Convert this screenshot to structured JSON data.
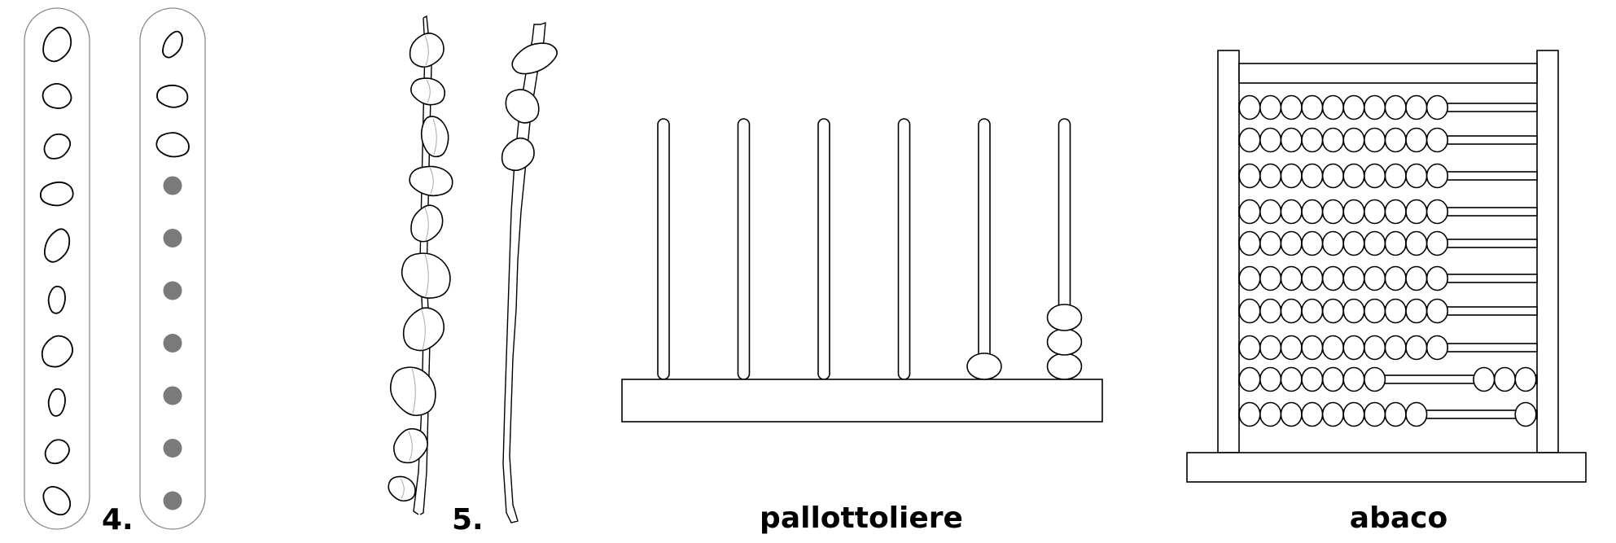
{
  "figure": {
    "label_tally_sticks": "4.",
    "label_bead_string": "5.",
    "label_bead_frame": "pallottoliere",
    "label_abacus": "abaco"
  },
  "tally": {
    "left_stones": 10,
    "right_stones": 3,
    "right_dots": 7
  },
  "pallottoliere": {
    "rods": 6,
    "beads_per_rod": [
      0,
      0,
      0,
      0,
      1,
      3
    ]
  },
  "abacus": {
    "rows": 10,
    "beads_per_row": 10,
    "row_split": [
      [
        10,
        0
      ],
      [
        10,
        0
      ],
      [
        10,
        0
      ],
      [
        10,
        0
      ],
      [
        10,
        0
      ],
      [
        10,
        0
      ],
      [
        10,
        0
      ],
      [
        10,
        0
      ],
      [
        7,
        3
      ],
      [
        9,
        1
      ]
    ]
  },
  "colors": {
    "outline": "#000000",
    "tube_outline": "#888888",
    "dot": "#7a7a7a"
  }
}
